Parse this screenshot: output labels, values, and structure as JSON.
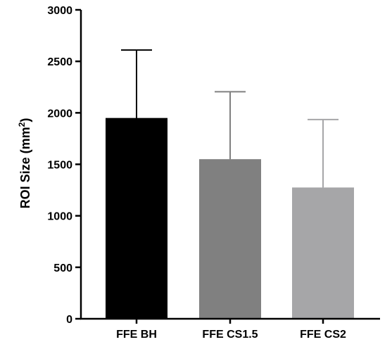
{
  "chart_data": {
    "type": "bar",
    "title": "",
    "xlabel": "",
    "ylabel": "ROI Size (mm",
    "ylabel_sup": "2",
    "ylabel_close": ")",
    "ylim": [
      0,
      3000
    ],
    "yticks": [
      0,
      500,
      1000,
      1500,
      2000,
      2500,
      3000
    ],
    "categories": [
      "FFE BH",
      "FFE CS1.5",
      "FFE CS2"
    ],
    "values": [
      1950,
      1550,
      1275
    ],
    "errors": [
      660,
      655,
      660
    ],
    "colors": [
      "#000000",
      "#808080",
      "#a6a6a8"
    ],
    "error_colors": [
      "#000000",
      "#808080",
      "#a6a6a8"
    ],
    "grid": false,
    "legend": "none"
  }
}
